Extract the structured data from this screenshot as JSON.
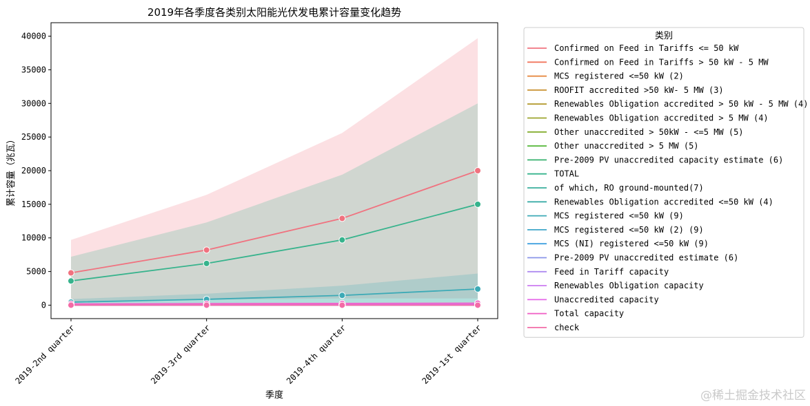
{
  "chart_data": {
    "type": "line",
    "title": "2019年各季度各类别太阳能光伏发电累计容量变化趋势",
    "xlabel": "季度",
    "ylabel": "累计容量（兆瓦）",
    "categories": [
      "2019-2nd quarter",
      "2019-3rd quarter",
      "2019-4th quarter",
      "2019-1st quarter"
    ],
    "ylim": [
      -2000,
      42000
    ],
    "yticks": [
      0,
      5000,
      10000,
      15000,
      20000,
      25000,
      30000,
      35000,
      40000
    ],
    "grid": false,
    "legend": {
      "title": "类别",
      "placement": "outside-right"
    },
    "series": [
      {
        "name": "Confirmed on Feed in Tariffs  <= 50 kW",
        "color": "#f0727f",
        "values": [
          4800,
          8200,
          12900,
          20000
        ],
        "ci_low": [
          500,
          800,
          1000,
          1000
        ],
        "ci_high": [
          9700,
          16400,
          25600,
          39700
        ]
      },
      {
        "name": "Confirmed on Feed in Tariffs  > 50 kW - 5 MW",
        "color": "#f1755c",
        "values": [
          70,
          90,
          110,
          130
        ]
      },
      {
        "name": "MCS registered <=50 kW (2)",
        "color": "#e48236",
        "values": [
          60,
          80,
          100,
          120
        ]
      },
      {
        "name": "ROOFIT accredited >50 kW- 5 MW (3)",
        "color": "#c8902f",
        "values": [
          50,
          70,
          90,
          110
        ]
      },
      {
        "name": "Renewables Obligation accredited > 50 kW - 5 MW (4)",
        "color": "#b39a2e",
        "values": [
          40,
          60,
          80,
          100
        ]
      },
      {
        "name": "Renewables Obligation accredited > 5 MW (4)",
        "color": "#9ba42c",
        "values": [
          30,
          50,
          70,
          90
        ]
      },
      {
        "name": "Other unaccredited > 50kW - <=5 MW (5)",
        "color": "#83ad2f",
        "values": [
          20,
          40,
          60,
          80
        ]
      },
      {
        "name": "Other unaccredited > 5 MW (5)",
        "color": "#51b534",
        "values": [
          10,
          30,
          50,
          70
        ]
      },
      {
        "name": "Pre-2009 PV unaccredited capacity estimate (6)",
        "color": "#34b06c",
        "values": [
          20,
          20,
          20,
          20
        ]
      },
      {
        "name": "TOTAL",
        "color": "#36b38c",
        "values": [
          3600,
          6200,
          9700,
          15000
        ],
        "ci_low": [
          0,
          0,
          0,
          0
        ],
        "ci_high": [
          7200,
          12300,
          19400,
          30000
        ]
      },
      {
        "name": "of which, RO ground-mounted(7)",
        "color": "#38ae9b",
        "values": [
          30,
          50,
          70,
          90
        ]
      },
      {
        "name": "Renewables Obligation accredited <=50 kW (4)",
        "color": "#3aaca7",
        "values": [
          10,
          10,
          10,
          10
        ]
      },
      {
        "name": "MCS registered <=50 kW (9)",
        "color": "#3caab6",
        "values": [
          450,
          870,
          1450,
          2400
        ],
        "ci_low": [
          0,
          0,
          0,
          0
        ],
        "ci_high": [
          900,
          1700,
          2900,
          4700
        ]
      },
      {
        "name": "MCS registered <=50 kW (2) (9)",
        "color": "#3ea6c8",
        "values": [
          40,
          60,
          80,
          100
        ]
      },
      {
        "name": "MCS (NI) registered <=50 kW (9)",
        "color": "#40a0df",
        "values": [
          10,
          10,
          10,
          10
        ]
      },
      {
        "name": "Pre-2009 PV unaccredited estimate (6)",
        "color": "#8995e8",
        "values": [
          20,
          20,
          20,
          20
        ]
      },
      {
        "name": "Feed in Tariff capacity",
        "color": "#ad8af0",
        "values": [
          150,
          180,
          200,
          230
        ]
      },
      {
        "name": "Renewables Obligation capacity",
        "color": "#cc7af0",
        "values": [
          120,
          150,
          170,
          200
        ]
      },
      {
        "name": "Unaccredited capacity",
        "color": "#e566e8",
        "values": [
          30,
          40,
          50,
          60
        ]
      },
      {
        "name": "Total capacity",
        "color": "#f065c8",
        "values": [
          200,
          230,
          260,
          300
        ]
      },
      {
        "name": "check",
        "color": "#f36ba6",
        "values": [
          0,
          0,
          0,
          0
        ]
      }
    ]
  },
  "watermark": "@稀土掘金技术社区"
}
